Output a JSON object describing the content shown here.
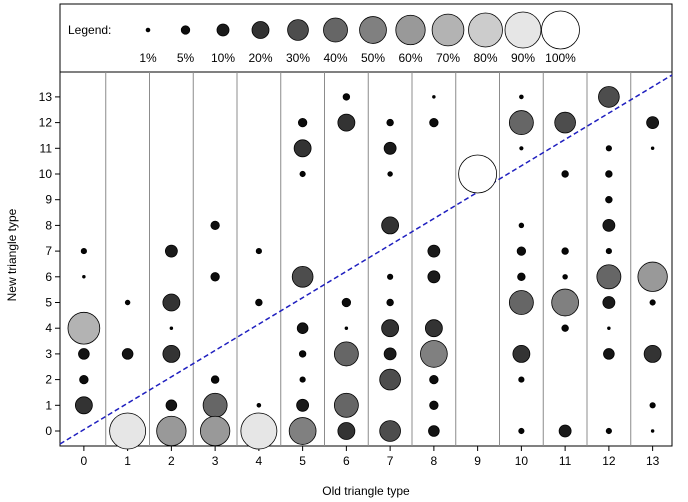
{
  "chart_data": {
    "type": "scatter",
    "title": "",
    "xlabel": "Old triangle type",
    "ylabel": "New triangle type",
    "xlim": [
      -0.5,
      13.5
    ],
    "ylim": [
      -0.5,
      13.5
    ],
    "x_ticks": [
      "0",
      "1",
      "2",
      "3",
      "4",
      "5",
      "6",
      "7",
      "8",
      "9",
      "10",
      "11",
      "12",
      "13"
    ],
    "y_ticks": [
      "0",
      "1",
      "2",
      "3",
      "4",
      "5",
      "6",
      "7",
      "8",
      "9",
      "10",
      "11",
      "12",
      "13"
    ],
    "grid": "vertical separators between columns",
    "diagonal_reference_line": {
      "style": "dashed",
      "color": "#1f1fbf"
    },
    "legend": {
      "title": "Legend:",
      "placement": "top",
      "entries": [
        {
          "label": "1%",
          "value": 1
        },
        {
          "label": "5%",
          "value": 5
        },
        {
          "label": "10%",
          "value": 10
        },
        {
          "label": "20%",
          "value": 20
        },
        {
          "label": "30%",
          "value": 30
        },
        {
          "label": "40%",
          "value": 40
        },
        {
          "label": "50%",
          "value": 50
        },
        {
          "label": "60%",
          "value": 60
        },
        {
          "label": "70%",
          "value": 70
        },
        {
          "label": "80%",
          "value": 80
        },
        {
          "label": "90%",
          "value": 90
        },
        {
          "label": "100%",
          "value": 100
        }
      ]
    },
    "points": [
      {
        "x": 0,
        "y": 7,
        "value": 2
      },
      {
        "x": 0,
        "y": 6,
        "value": 0.5
      },
      {
        "x": 0,
        "y": 4,
        "value": 70
      },
      {
        "x": 0,
        "y": 3,
        "value": 8
      },
      {
        "x": 0,
        "y": 2,
        "value": 5
      },
      {
        "x": 0,
        "y": 1,
        "value": 20
      },
      {
        "x": 1,
        "y": 5,
        "value": 1.5
      },
      {
        "x": 1,
        "y": 3,
        "value": 8
      },
      {
        "x": 1,
        "y": 0,
        "value": 90
      },
      {
        "x": 2,
        "y": 7,
        "value": 10
      },
      {
        "x": 2,
        "y": 5,
        "value": 20
      },
      {
        "x": 2,
        "y": 4,
        "value": 0.5
      },
      {
        "x": 2,
        "y": 3,
        "value": 20
      },
      {
        "x": 2,
        "y": 1,
        "value": 8
      },
      {
        "x": 2,
        "y": 0,
        "value": 60
      },
      {
        "x": 3,
        "y": 8,
        "value": 5
      },
      {
        "x": 3,
        "y": 6,
        "value": 5
      },
      {
        "x": 3,
        "y": 2,
        "value": 4
      },
      {
        "x": 3,
        "y": 1,
        "value": 40
      },
      {
        "x": 3,
        "y": 0,
        "value": 60
      },
      {
        "x": 4,
        "y": 7,
        "value": 2
      },
      {
        "x": 4,
        "y": 5,
        "value": 3
      },
      {
        "x": 4,
        "y": 1,
        "value": 1
      },
      {
        "x": 4,
        "y": 0,
        "value": 90
      },
      {
        "x": 5,
        "y": 12,
        "value": 5
      },
      {
        "x": 5,
        "y": 11,
        "value": 20
      },
      {
        "x": 5,
        "y": 10,
        "value": 2
      },
      {
        "x": 5,
        "y": 6,
        "value": 30
      },
      {
        "x": 5,
        "y": 4,
        "value": 8
      },
      {
        "x": 5,
        "y": 3,
        "value": 3
      },
      {
        "x": 5,
        "y": 2,
        "value": 2
      },
      {
        "x": 5,
        "y": 1,
        "value": 10
      },
      {
        "x": 5,
        "y": 0,
        "value": 50
      },
      {
        "x": 6,
        "y": 13,
        "value": 3
      },
      {
        "x": 6,
        "y": 12,
        "value": 20
      },
      {
        "x": 6,
        "y": 5,
        "value": 5
      },
      {
        "x": 6,
        "y": 4,
        "value": 0.5
      },
      {
        "x": 6,
        "y": 3,
        "value": 40
      },
      {
        "x": 6,
        "y": 1,
        "value": 40
      },
      {
        "x": 6,
        "y": 0,
        "value": 20
      },
      {
        "x": 7,
        "y": 12,
        "value": 3
      },
      {
        "x": 7,
        "y": 11,
        "value": 10
      },
      {
        "x": 7,
        "y": 10,
        "value": 1.5
      },
      {
        "x": 7,
        "y": 8,
        "value": 20
      },
      {
        "x": 7,
        "y": 6,
        "value": 2
      },
      {
        "x": 7,
        "y": 5,
        "value": 3
      },
      {
        "x": 7,
        "y": 4,
        "value": 20
      },
      {
        "x": 7,
        "y": 3,
        "value": 10
      },
      {
        "x": 7,
        "y": 2,
        "value": 30
      },
      {
        "x": 7,
        "y": 0,
        "value": 30
      },
      {
        "x": 8,
        "y": 13,
        "value": 0.5
      },
      {
        "x": 8,
        "y": 12,
        "value": 5
      },
      {
        "x": 8,
        "y": 7,
        "value": 10
      },
      {
        "x": 8,
        "y": 6,
        "value": 10
      },
      {
        "x": 8,
        "y": 4,
        "value": 20
      },
      {
        "x": 8,
        "y": 3,
        "value": 50
      },
      {
        "x": 8,
        "y": 2,
        "value": 5
      },
      {
        "x": 8,
        "y": 1,
        "value": 5
      },
      {
        "x": 8,
        "y": 0,
        "value": 8
      },
      {
        "x": 9,
        "y": 10,
        "value": 100
      },
      {
        "x": 10,
        "y": 13,
        "value": 1
      },
      {
        "x": 10,
        "y": 12,
        "value": 40
      },
      {
        "x": 10,
        "y": 11,
        "value": 0.8
      },
      {
        "x": 10,
        "y": 8,
        "value": 1.5
      },
      {
        "x": 10,
        "y": 7,
        "value": 5
      },
      {
        "x": 10,
        "y": 6,
        "value": 4
      },
      {
        "x": 10,
        "y": 5,
        "value": 40
      },
      {
        "x": 10,
        "y": 3,
        "value": 20
      },
      {
        "x": 10,
        "y": 2,
        "value": 2
      },
      {
        "x": 10,
        "y": 0,
        "value": 2
      },
      {
        "x": 11,
        "y": 12,
        "value": 30
      },
      {
        "x": 11,
        "y": 10,
        "value": 3
      },
      {
        "x": 11,
        "y": 7,
        "value": 3
      },
      {
        "x": 11,
        "y": 6,
        "value": 1.5
      },
      {
        "x": 11,
        "y": 5,
        "value": 50
      },
      {
        "x": 11,
        "y": 4,
        "value": 3
      },
      {
        "x": 11,
        "y": 0,
        "value": 10
      },
      {
        "x": 12,
        "y": 13,
        "value": 30
      },
      {
        "x": 12,
        "y": 11,
        "value": 2
      },
      {
        "x": 12,
        "y": 10,
        "value": 3
      },
      {
        "x": 12,
        "y": 9,
        "value": 3
      },
      {
        "x": 12,
        "y": 8,
        "value": 10
      },
      {
        "x": 12,
        "y": 7,
        "value": 2
      },
      {
        "x": 12,
        "y": 6,
        "value": 40
      },
      {
        "x": 12,
        "y": 5,
        "value": 10
      },
      {
        "x": 12,
        "y": 4,
        "value": 0.5
      },
      {
        "x": 12,
        "y": 3,
        "value": 8
      },
      {
        "x": 12,
        "y": 0,
        "value": 2
      },
      {
        "x": 13,
        "y": 12,
        "value": 10
      },
      {
        "x": 13,
        "y": 11,
        "value": 0.5
      },
      {
        "x": 13,
        "y": 6,
        "value": 60
      },
      {
        "x": 13,
        "y": 5,
        "value": 2
      },
      {
        "x": 13,
        "y": 3,
        "value": 20
      },
      {
        "x": 13,
        "y": 1,
        "value": 2
      },
      {
        "x": 13,
        "y": 0,
        "value": 0.5
      }
    ]
  }
}
